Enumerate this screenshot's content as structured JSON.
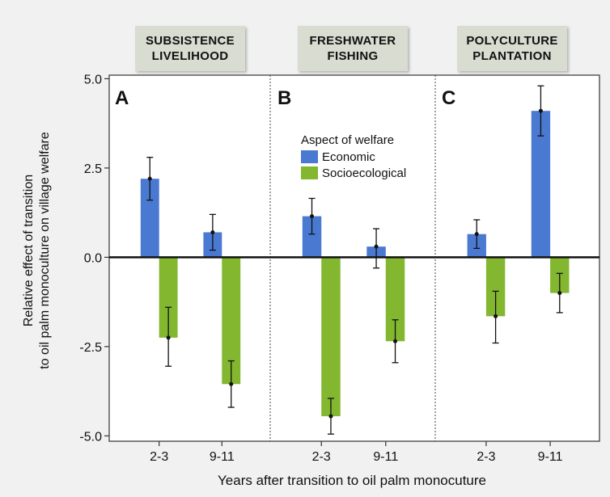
{
  "panels": [
    {
      "letter": "A",
      "header": [
        "SUBSISTENCE",
        "LIVELIHOOD"
      ]
    },
    {
      "letter": "B",
      "header": [
        "FRESHWATER",
        "FISHING"
      ]
    },
    {
      "letter": "C",
      "header": [
        "POLYCULTURE",
        "PLANTATION"
      ]
    }
  ],
  "legend": {
    "title": "Aspect of welfare",
    "economic": "Economic",
    "socio": "Socioecological"
  },
  "chart_data": {
    "type": "bar",
    "xlabel": "Years after transition to oil palm monocuture",
    "ylabel": [
      "Relative effect of transition",
      "to oil palm monoculture on village welfare"
    ],
    "ylim": [
      -5.15,
      5.1
    ],
    "yticks": [
      5.0,
      2.5,
      0.0,
      -2.5,
      -5.0
    ],
    "ytick_labels": [
      "5.0",
      "2.5",
      "0.0",
      "-2.5",
      "-5.0"
    ],
    "categories": [
      "2-3",
      "9-11"
    ],
    "colors": {
      "Economic": "#4a79d2",
      "Socioecological": "#82b72f"
    },
    "panels": [
      {
        "panel": "A",
        "series": [
          {
            "name": "Economic",
            "values": [
              2.2,
              0.7
            ],
            "err_low": [
              1.6,
              0.2
            ],
            "err_high": [
              2.8,
              1.2
            ]
          },
          {
            "name": "Socioecological",
            "values": [
              -2.25,
              -3.55
            ],
            "err_low": [
              -3.05,
              -4.2
            ],
            "err_high": [
              -1.4,
              -2.9
            ]
          }
        ]
      },
      {
        "panel": "B",
        "series": [
          {
            "name": "Economic",
            "values": [
              1.15,
              0.3
            ],
            "err_low": [
              0.65,
              -0.3
            ],
            "err_high": [
              1.65,
              0.8
            ]
          },
          {
            "name": "Socioecological",
            "values": [
              -4.45,
              -2.35
            ],
            "err_low": [
              -4.95,
              -2.95
            ],
            "err_high": [
              -3.95,
              -1.75
            ]
          }
        ]
      },
      {
        "panel": "C",
        "series": [
          {
            "name": "Economic",
            "values": [
              0.65,
              4.1
            ],
            "err_low": [
              0.25,
              3.4
            ],
            "err_high": [
              1.05,
              4.8
            ]
          },
          {
            "name": "Socioecological",
            "values": [
              -1.65,
              -1.0
            ],
            "err_low": [
              -2.4,
              -1.55
            ],
            "err_high": [
              -0.95,
              -0.45
            ]
          }
        ]
      }
    ]
  }
}
